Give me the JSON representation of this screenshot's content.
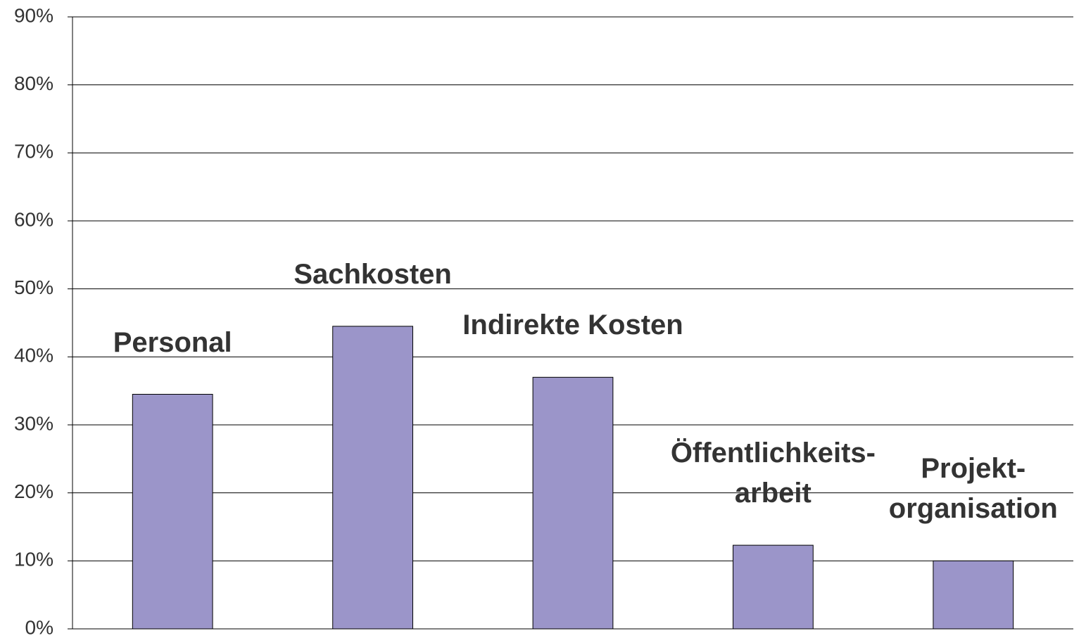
{
  "chart_data": {
    "type": "bar",
    "categories": [
      "Personal",
      "Sachkosten",
      "Indirekte Kosten",
      "Öffentlichkeits-\narbeit",
      "Projekt-\norganisation"
    ],
    "values": [
      34.5,
      44.5,
      37,
      12.3,
      10
    ],
    "color": "#9b95c9",
    "ylim": [
      0,
      90
    ],
    "yticks": [
      {
        "value": 0,
        "label": "0%"
      },
      {
        "value": 10,
        "label": "10%"
      },
      {
        "value": 20,
        "label": "20%"
      },
      {
        "value": 30,
        "label": "30%"
      },
      {
        "value": 40,
        "label": "40%"
      },
      {
        "value": 50,
        "label": "50%"
      },
      {
        "value": 60,
        "label": "60%"
      },
      {
        "value": 70,
        "label": "70%"
      },
      {
        "value": 80,
        "label": "80%"
      },
      {
        "value": 90,
        "label": "90%"
      }
    ],
    "grid": true
  }
}
